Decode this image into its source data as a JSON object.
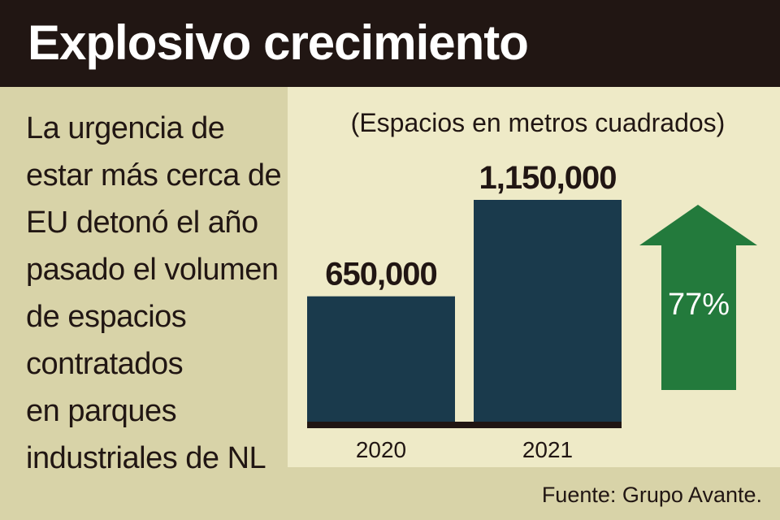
{
  "header": {
    "title": "Explosivo crecimiento"
  },
  "lead": {
    "lines": [
      "La urgencia de",
      "estar más cerca de",
      "EU detonó el año",
      "pasado el volumen",
      "de espacios",
      "contratados",
      "en parques",
      "industriales de NL"
    ]
  },
  "source": "Fuente: Grupo Avante.",
  "colors": {
    "bar": "#1a3a4c",
    "baseline": "#211613",
    "arrow": "#237a3c",
    "header_bg": "#211613",
    "panel_bg": "#eeeac7",
    "page_bg": "#d8d3a8"
  },
  "chart_data": {
    "type": "bar",
    "subtitle": "(Espacios en metros cuadrados)",
    "categories": [
      "2020",
      "2021"
    ],
    "values": [
      650000,
      1150000
    ],
    "value_labels": [
      "650,000",
      "1,150,000"
    ],
    "ylim": [
      0,
      1150000
    ],
    "grid": false,
    "growth_label": "77%",
    "growth_icon": "up-arrow-icon"
  }
}
